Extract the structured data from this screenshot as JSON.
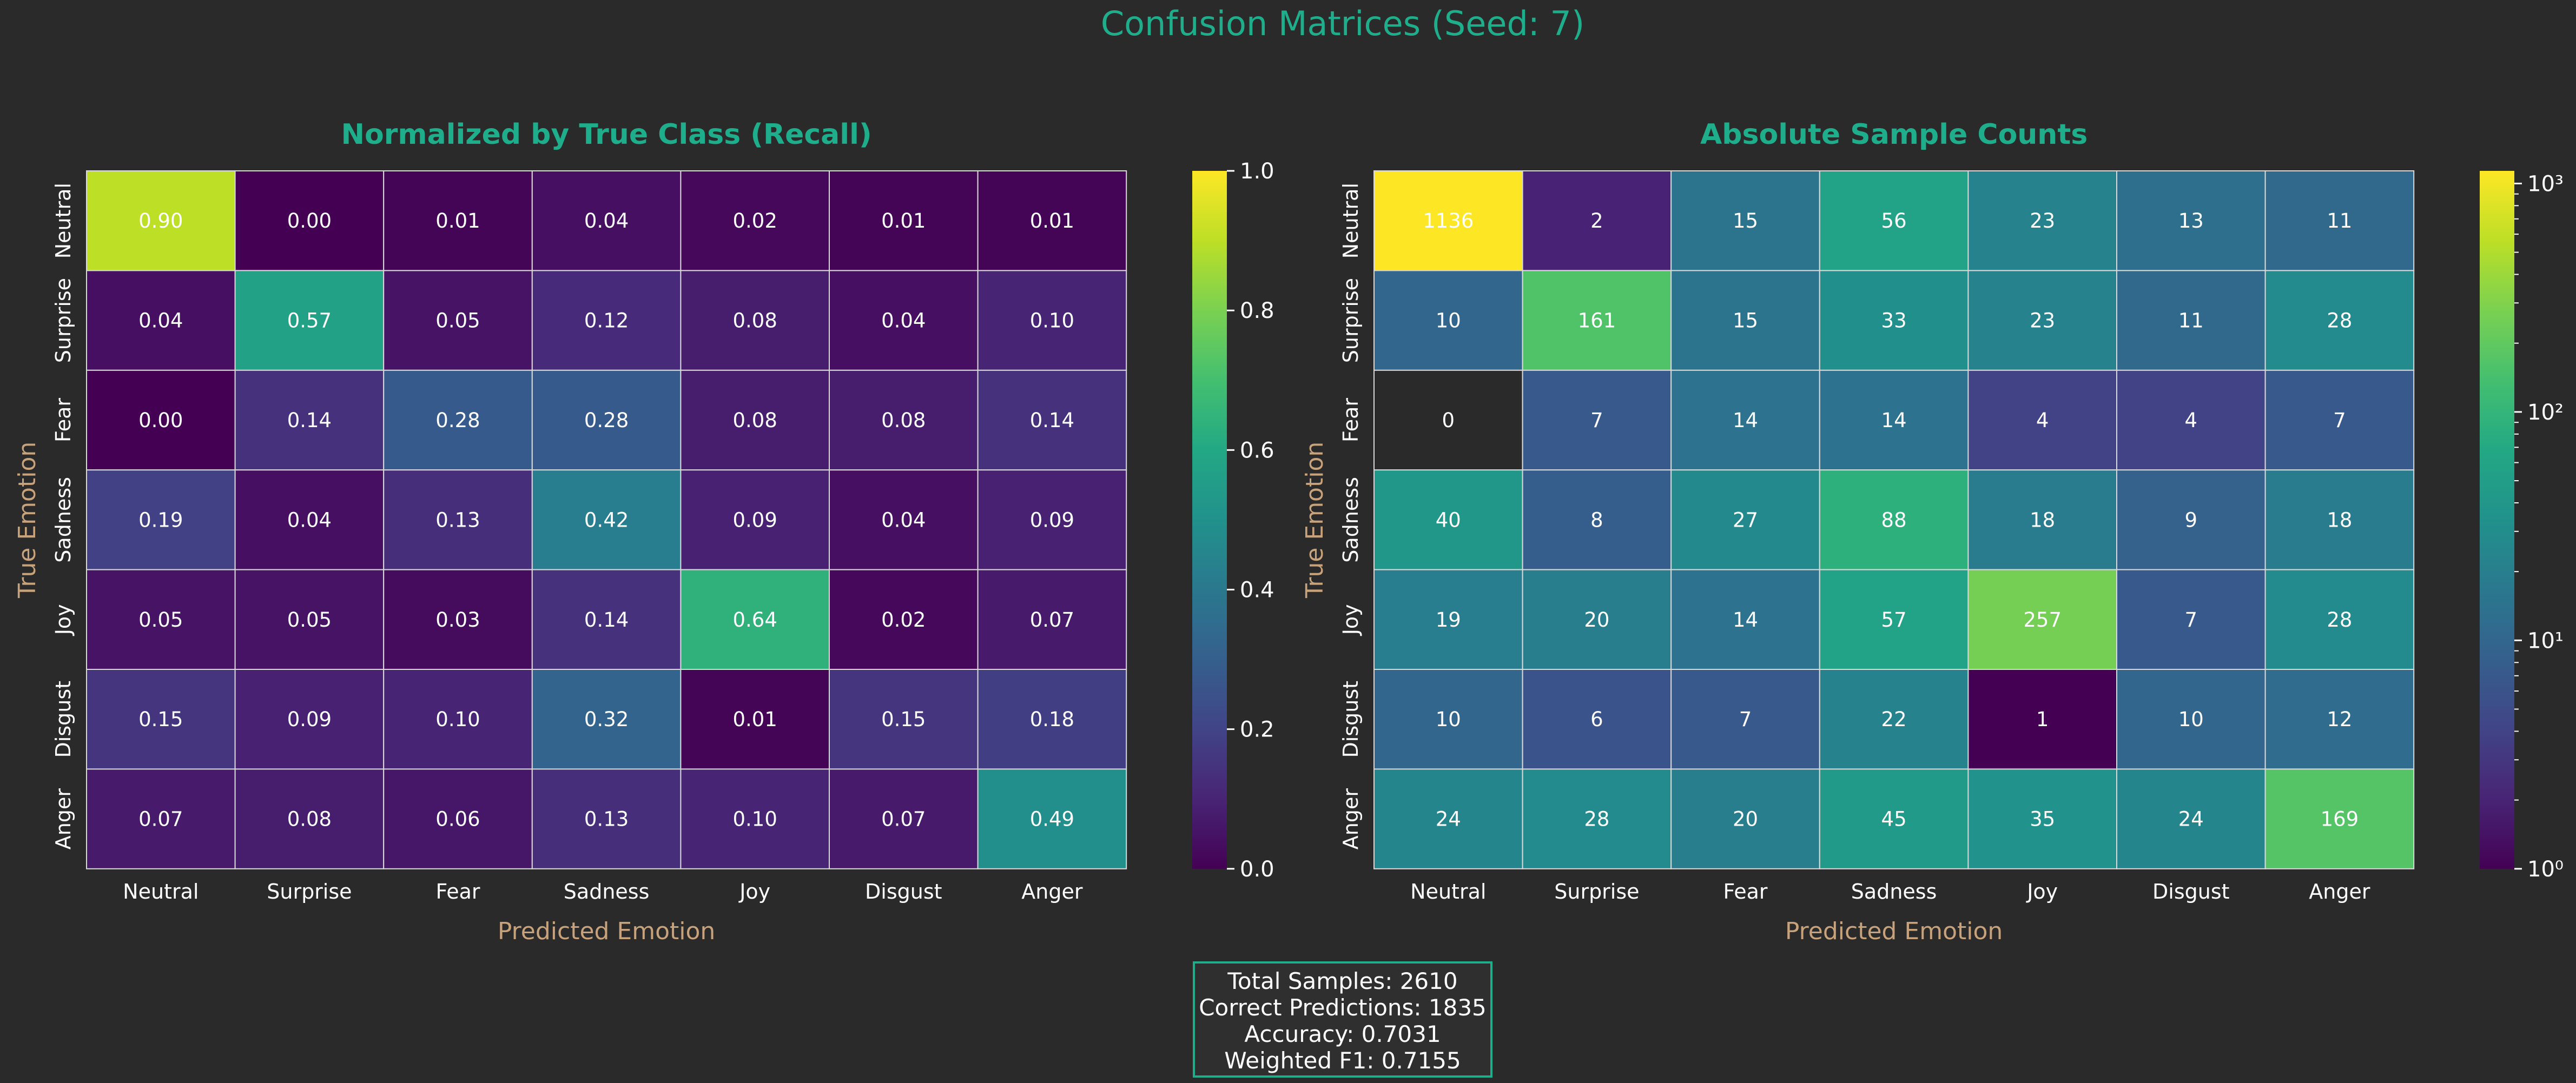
{
  "figure": {
    "title": "Confusion Matrices (Seed: 7)",
    "colors": {
      "background": "#2a2a2a",
      "title": "#1fae8b",
      "axis_label": "#c8a27a",
      "tick": "#ffffff",
      "cell_text": "#ffffff",
      "grid": "#d9d9d9",
      "box_border": "#1fae8b"
    }
  },
  "stats": {
    "total": "Total Samples: 2610",
    "correct": "Correct Predictions: 1835",
    "accuracy": "Accuracy: 0.7031",
    "f1": "Weighted F1: 0.7155"
  },
  "chart_data": [
    {
      "type": "heatmap",
      "title": "Normalized by True Class (Recall)",
      "xlabel": "Predicted Emotion",
      "ylabel": "True Emotion",
      "x_categories": [
        "Neutral",
        "Surprise",
        "Fear",
        "Sadness",
        "Joy",
        "Disgust",
        "Anger"
      ],
      "y_categories": [
        "Neutral",
        "Surprise",
        "Fear",
        "Sadness",
        "Joy",
        "Disgust",
        "Anger"
      ],
      "values": [
        [
          0.9,
          0.0,
          0.01,
          0.04,
          0.02,
          0.01,
          0.01
        ],
        [
          0.04,
          0.57,
          0.05,
          0.12,
          0.08,
          0.04,
          0.1
        ],
        [
          0.0,
          0.14,
          0.28,
          0.28,
          0.08,
          0.08,
          0.14
        ],
        [
          0.19,
          0.04,
          0.13,
          0.42,
          0.09,
          0.04,
          0.09
        ],
        [
          0.05,
          0.05,
          0.03,
          0.14,
          0.64,
          0.02,
          0.07
        ],
        [
          0.15,
          0.09,
          0.1,
          0.32,
          0.01,
          0.15,
          0.18
        ],
        [
          0.07,
          0.08,
          0.06,
          0.13,
          0.1,
          0.07,
          0.49
        ]
      ],
      "colormap": "viridis",
      "color_scale": "linear",
      "vmin": 0,
      "vmax": 1,
      "colorbar_ticks": [
        "0.0",
        "0.2",
        "0.4",
        "0.6",
        "0.8",
        "1.0"
      ],
      "value_format": "2f"
    },
    {
      "type": "heatmap",
      "title": "Absolute Sample Counts",
      "xlabel": "Predicted Emotion",
      "ylabel": "True Emotion",
      "x_categories": [
        "Neutral",
        "Surprise",
        "Fear",
        "Sadness",
        "Joy",
        "Disgust",
        "Anger"
      ],
      "y_categories": [
        "Neutral",
        "Surprise",
        "Fear",
        "Sadness",
        "Joy",
        "Disgust",
        "Anger"
      ],
      "values": [
        [
          1136,
          2,
          15,
          56,
          23,
          13,
          11
        ],
        [
          10,
          161,
          15,
          33,
          23,
          11,
          28
        ],
        [
          0,
          7,
          14,
          14,
          4,
          4,
          7
        ],
        [
          40,
          8,
          27,
          88,
          18,
          9,
          18
        ],
        [
          19,
          20,
          14,
          57,
          257,
          7,
          28
        ],
        [
          10,
          6,
          7,
          22,
          1,
          10,
          12
        ],
        [
          24,
          28,
          20,
          45,
          35,
          24,
          169
        ]
      ],
      "colormap": "viridis",
      "color_scale": "log",
      "vmin": 1,
      "vmax": 1136,
      "zero_color": "#2a2a2a",
      "colorbar_ticks": [
        "10⁰",
        "10¹",
        "10²",
        "10³"
      ],
      "value_format": "d"
    }
  ]
}
